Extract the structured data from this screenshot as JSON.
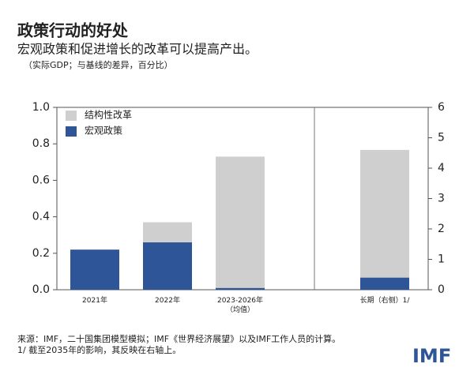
{
  "chart_data": {
    "type": "stacked-bar",
    "title": "政策行动的好处",
    "subtitle": "宏观政策和促进增长的改革可以提高产出。",
    "unit_note": "（实际GDP；与基线的差异，百分比）",
    "categories": [
      "2021年",
      "2022年",
      "2023-2026年\n（均值）",
      "长期（右侧）1/"
    ],
    "axis_by_category": [
      "y",
      "y",
      "y",
      "y2"
    ],
    "series": [
      {
        "name": "结构性改革",
        "color": "#d0cfcf",
        "values": [
          0,
          0.11,
          0.72,
          4.2
        ]
      },
      {
        "name": "宏观政策",
        "color": "#2e5597",
        "values": [
          0.22,
          0.26,
          0.01,
          0.4
        ]
      }
    ],
    "ylim": [
      0,
      1
    ],
    "yticks": [
      {
        "value": 0,
        "label": "0.0"
      },
      {
        "value": 0.2,
        "label": "0.2"
      },
      {
        "value": 0.4,
        "label": "0.4"
      },
      {
        "value": 0.6,
        "label": "0.6"
      },
      {
        "value": 0.8,
        "label": "0.8"
      },
      {
        "value": 1,
        "label": "1.0"
      }
    ],
    "y2lim": [
      0,
      6
    ],
    "y2ticks": [
      0,
      1,
      2,
      3,
      4,
      5,
      6
    ],
    "source": "来源：IMF，二十国集团模型模拟；IMF《世界经济展望》以及IMF工作人员的计算。",
    "footnote": "1/ 截至2035年的影响，其反映在右轴上。",
    "logo": "IMF"
  }
}
